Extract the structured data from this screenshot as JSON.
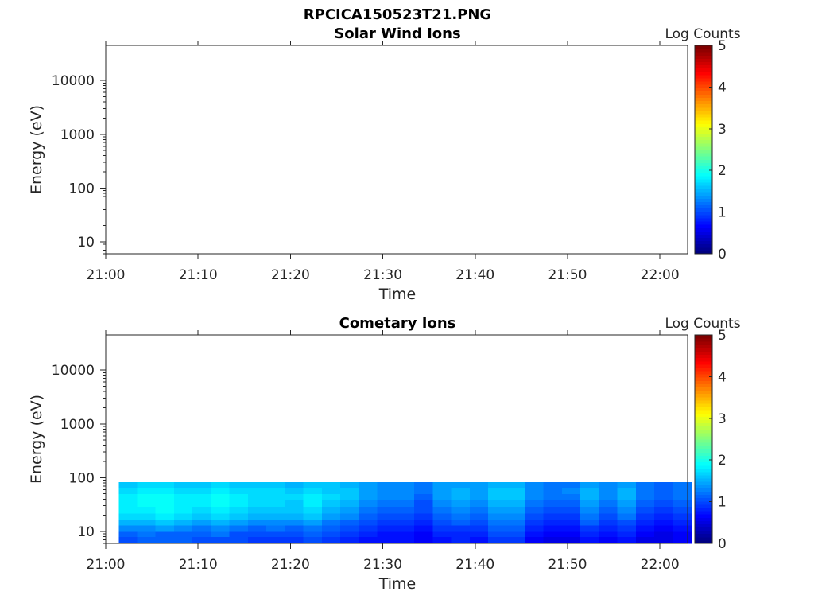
{
  "figure_title": "RPCICA150523T21.PNG",
  "chart_data": [
    {
      "type": "heatmap",
      "title": "Solar Wind Ions",
      "xlabel": "Time",
      "ylabel": "Energy (eV)",
      "x_ticks": [
        "21:00",
        "21:10",
        "21:20",
        "21:30",
        "21:40",
        "21:50",
        "22:00"
      ],
      "x_range_minutes": [
        0,
        63
      ],
      "y_scale": "log",
      "y_ticks": [
        "10",
        "100",
        "1000",
        "10000"
      ],
      "y_range": [
        6,
        45000
      ],
      "colorbar": {
        "label": "Log Counts",
        "ticks": [
          "0",
          "1",
          "2",
          "3",
          "4",
          "5"
        ],
        "range": [
          0,
          5
        ],
        "colormap": "jet"
      },
      "data": {
        "time_bins": [],
        "energy_bins": [],
        "values": []
      }
    },
    {
      "type": "heatmap",
      "title": "Cometary Ions",
      "xlabel": "Time",
      "ylabel": "Energy (eV)",
      "x_ticks": [
        "21:00",
        "21:10",
        "21:20",
        "21:30",
        "21:40",
        "21:50",
        "22:00"
      ],
      "x_range_minutes": [
        0,
        63
      ],
      "y_scale": "log",
      "y_ticks": [
        "10",
        "100",
        "1000",
        "10000"
      ],
      "y_range": [
        6,
        45000
      ],
      "colorbar": {
        "label": "Log Counts",
        "ticks": [
          "0",
          "1",
          "2",
          "3",
          "4",
          "5"
        ],
        "range": [
          0,
          5
        ],
        "colormap": "jet"
      },
      "data": {
        "time_bins_minutes": [
          2.4,
          4.4,
          6.4,
          8.4,
          10.4,
          12.4,
          14.4,
          16.4,
          18.4,
          20.4,
          22.4,
          24.4,
          26.4,
          28.4,
          30.4,
          32.4,
          34.4,
          36.4,
          38.4,
          40.4,
          42.4,
          44.4,
          46.4,
          48.4,
          50.4,
          52.4,
          54.4,
          56.4,
          58.4,
          60.4,
          62.4
        ],
        "energy_bin_edges_eV": [
          6,
          8,
          10,
          13,
          17,
          22,
          29,
          38,
          50,
          65,
          82
        ],
        "values": [
          [
            1.0,
            1.1,
            1.1,
            1.1,
            1.0,
            1.0,
            1.0,
            0.9,
            0.9,
            0.9,
            1.0,
            0.9,
            0.8,
            0.7,
            0.7,
            0.7,
            0.6,
            0.7,
            0.8,
            0.7,
            0.9,
            0.9,
            0.6,
            0.5,
            0.5,
            0.7,
            0.6,
            0.7,
            0.5,
            0.5,
            0.6
          ],
          [
            1.1,
            1.2,
            1.1,
            1.1,
            1.1,
            1.2,
            1.0,
            1.0,
            1.0,
            1.0,
            1.1,
            1.0,
            0.9,
            0.8,
            0.7,
            0.7,
            0.6,
            0.8,
            0.8,
            0.8,
            1.0,
            1.0,
            0.7,
            0.6,
            0.6,
            0.8,
            0.7,
            0.8,
            0.6,
            0.5,
            0.6
          ],
          [
            1.3,
            1.3,
            1.4,
            1.3,
            1.2,
            1.3,
            1.2,
            1.1,
            1.2,
            1.1,
            1.2,
            1.1,
            1.0,
            0.9,
            0.8,
            0.8,
            0.7,
            0.9,
            0.9,
            0.9,
            1.1,
            1.1,
            0.8,
            0.7,
            0.7,
            0.9,
            0.8,
            0.9,
            0.7,
            0.6,
            0.7
          ],
          [
            1.5,
            1.5,
            1.6,
            1.5,
            1.4,
            1.5,
            1.4,
            1.3,
            1.3,
            1.3,
            1.4,
            1.2,
            1.1,
            1.0,
            0.9,
            0.9,
            0.8,
            1.0,
            1.1,
            1.0,
            1.2,
            1.2,
            0.9,
            0.8,
            0.8,
            1.1,
            0.9,
            1.0,
            0.8,
            0.7,
            0.8
          ],
          [
            1.7,
            1.7,
            1.8,
            1.7,
            1.6,
            1.7,
            1.6,
            1.5,
            1.5,
            1.5,
            1.6,
            1.4,
            1.3,
            1.1,
            1.0,
            1.0,
            0.9,
            1.1,
            1.2,
            1.1,
            1.3,
            1.3,
            1.0,
            0.9,
            0.9,
            1.2,
            1.0,
            1.2,
            0.9,
            0.8,
            0.9
          ],
          [
            1.8,
            1.8,
            1.9,
            1.8,
            1.7,
            1.8,
            1.7,
            1.6,
            1.6,
            1.6,
            1.7,
            1.5,
            1.4,
            1.2,
            1.1,
            1.1,
            1.0,
            1.2,
            1.3,
            1.2,
            1.4,
            1.4,
            1.1,
            1.0,
            1.0,
            1.3,
            1.1,
            1.3,
            1.0,
            0.9,
            1.0
          ],
          [
            1.8,
            1.9,
            1.9,
            1.8,
            1.8,
            1.9,
            1.8,
            1.7,
            1.7,
            1.6,
            1.8,
            1.6,
            1.5,
            1.3,
            1.2,
            1.2,
            1.0,
            1.3,
            1.4,
            1.3,
            1.5,
            1.5,
            1.2,
            1.1,
            1.1,
            1.4,
            1.2,
            1.4,
            1.1,
            1.0,
            1.1
          ],
          [
            1.8,
            1.9,
            1.9,
            1.8,
            1.8,
            1.9,
            1.8,
            1.7,
            1.7,
            1.7,
            1.8,
            1.7,
            1.6,
            1.4,
            1.3,
            1.3,
            1.1,
            1.4,
            1.5,
            1.4,
            1.6,
            1.6,
            1.3,
            1.2,
            1.2,
            1.5,
            1.3,
            1.5,
            1.2,
            1.1,
            1.2
          ],
          [
            1.7,
            1.8,
            1.8,
            1.7,
            1.7,
            1.8,
            1.7,
            1.7,
            1.7,
            1.6,
            1.7,
            1.6,
            1.6,
            1.4,
            1.3,
            1.3,
            1.2,
            1.4,
            1.5,
            1.4,
            1.6,
            1.6,
            1.3,
            1.2,
            1.3,
            1.5,
            1.3,
            1.5,
            1.2,
            1.1,
            1.2
          ],
          [
            1.6,
            1.7,
            1.7,
            1.6,
            1.6,
            1.7,
            1.6,
            1.6,
            1.6,
            1.5,
            1.6,
            1.6,
            1.5,
            1.4,
            1.3,
            1.3,
            1.2,
            1.4,
            1.4,
            1.4,
            1.5,
            1.5,
            1.3,
            1.2,
            1.2,
            1.4,
            1.3,
            1.4,
            1.2,
            1.1,
            1.2
          ]
        ]
      }
    }
  ]
}
